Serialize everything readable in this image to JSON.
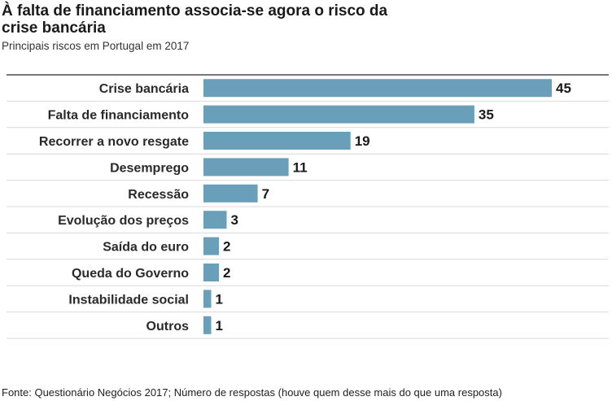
{
  "title": "À falta de financiamento associa-se agora o risco da crise bancária",
  "subtitle": "Principais riscos em Portugal em 2017",
  "source": "Fonte: Questionário Negócios 2017; Número de respostas (houve quem desse mais do  que uma resposta)",
  "colors": {
    "bar": "#6a9fba",
    "rule": "#d9d9d9",
    "rule_top": "#4a4a4a"
  },
  "chart_data": {
    "type": "bar",
    "orientation": "horizontal",
    "categories": [
      "Crise bancária",
      "Falta de financiamento",
      "Recorrer a novo resgate",
      "Desemprego",
      "Recessão",
      "Evolução dos preços",
      "Saída do euro",
      "Queda do Governo",
      "Instabilidade social",
      "Outros"
    ],
    "values": [
      45,
      35,
      19,
      11,
      7,
      3,
      2,
      2,
      1,
      1
    ],
    "data_labels": [
      "45",
      "35",
      "19",
      "11",
      "7",
      "3",
      "2",
      "2",
      "1",
      "1"
    ],
    "xlim": [
      0,
      45
    ],
    "grid": false
  }
}
